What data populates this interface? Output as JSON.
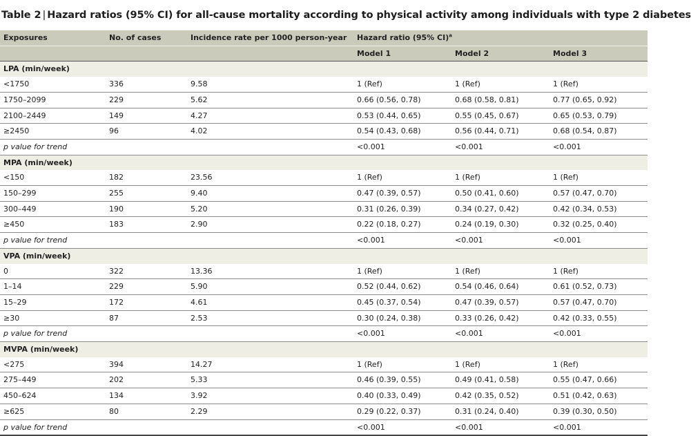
{
  "title": {
    "label": "Table 2",
    "text": "Hazard ratios (95% CI) for all-cause mortality according to physical activity among individuals with type 2 diabetes"
  },
  "header": {
    "exposures": "Exposures",
    "cases": "No. of cases",
    "incidence": "Incidence rate per 1000 person-year",
    "hr": "Hazard ratio (95% CI)",
    "hr_sup": "a",
    "model1": "Model 1",
    "model2": "Model 2",
    "model3": "Model 3"
  },
  "sections": [
    {
      "name": "LPA (min/week)",
      "rows": [
        [
          "<1750",
          "336",
          "9.58",
          "1 (Ref)",
          "1 (Ref)",
          "1 (Ref)"
        ],
        [
          "1750–2099",
          "229",
          "5.62",
          "0.66 (0.56, 0.78)",
          "0.68 (0.58, 0.81)",
          "0.77 (0.65, 0.92)"
        ],
        [
          "2100–2449",
          "149",
          "4.27",
          "0.53 (0.44, 0.65)",
          "0.55 (0.45, 0.67)",
          "0.65 (0.53, 0.79)"
        ],
        [
          "≥2450",
          "96",
          "4.02",
          "0.54 (0.43, 0.68)",
          "0.56 (0.44, 0.71)",
          "0.68 (0.54, 0.87)"
        ]
      ],
      "trend": [
        "p value for trend",
        "",
        "",
        "<0.001",
        "<0.001",
        "<0.001"
      ]
    },
    {
      "name": "MPA (min/week)",
      "rows": [
        [
          "<150",
          "182",
          "23.56",
          "1 (Ref)",
          "1 (Ref)",
          "1 (Ref)"
        ],
        [
          "150–299",
          "255",
          "9.40",
          "0.47 (0.39, 0.57)",
          "0.50 (0.41, 0.60)",
          "0.57 (0.47, 0.70)"
        ],
        [
          "300–449",
          "190",
          "5.20",
          "0.31 (0.26, 0.39)",
          "0.34 (0.27, 0.42)",
          "0.42 (0.34, 0.53)"
        ],
        [
          "≥450",
          "183",
          "2.90",
          "0.22 (0.18, 0.27)",
          "0.24 (0.19, 0.30)",
          "0.32 (0.25, 0.40)"
        ]
      ],
      "trend": [
        "p value for trend",
        "",
        "",
        "<0.001",
        "<0.001",
        "<0.001"
      ]
    },
    {
      "name": "VPA (min/week)",
      "rows": [
        [
          "0",
          "322",
          "13.36",
          "1 (Ref)",
          "1 (Ref)",
          "1 (Ref)"
        ],
        [
          "1–14",
          "229",
          "5.90",
          "0.52 (0.44, 0.62)",
          "0.54 (0.46, 0.64)",
          "0.61 (0.52, 0.73)"
        ],
        [
          "15–29",
          "172",
          "4.61",
          "0.45 (0.37, 0.54)",
          "0.47 (0.39, 0.57)",
          "0.57 (0.47, 0.70)"
        ],
        [
          "≥30",
          "87",
          "2.53",
          "0.30 (0.24, 0.38)",
          "0.33 (0.26, 0.42)",
          "0.42 (0.33, 0.55)"
        ]
      ],
      "trend": [
        "p value for trend",
        "",
        "",
        "<0.001",
        "<0.001",
        "<0.001"
      ]
    },
    {
      "name": "MVPA (min/week)",
      "rows": [
        [
          "<275",
          "394",
          "14.27",
          "1 (Ref)",
          "1 (Ref)",
          "1 (Ref)"
        ],
        [
          "275–449",
          "202",
          "5.33",
          "0.46 (0.39, 0.55)",
          "0.49 (0.41, 0.58)",
          "0.55 (0.47, 0.66)"
        ],
        [
          "450–624",
          "134",
          "3.92",
          "0.40 (0.33, 0.49)",
          "0.42 (0.35, 0.52)",
          "0.51 (0.42, 0.63)"
        ],
        [
          "≥625",
          "80",
          "2.29",
          "0.29 (0.22, 0.37)",
          "0.31 (0.24, 0.40)",
          "0.39 (0.30, 0.50)"
        ]
      ],
      "trend": [
        "p value for trend",
        "",
        "",
        "<0.001",
        "<0.001",
        "<0.001"
      ]
    }
  ]
}
